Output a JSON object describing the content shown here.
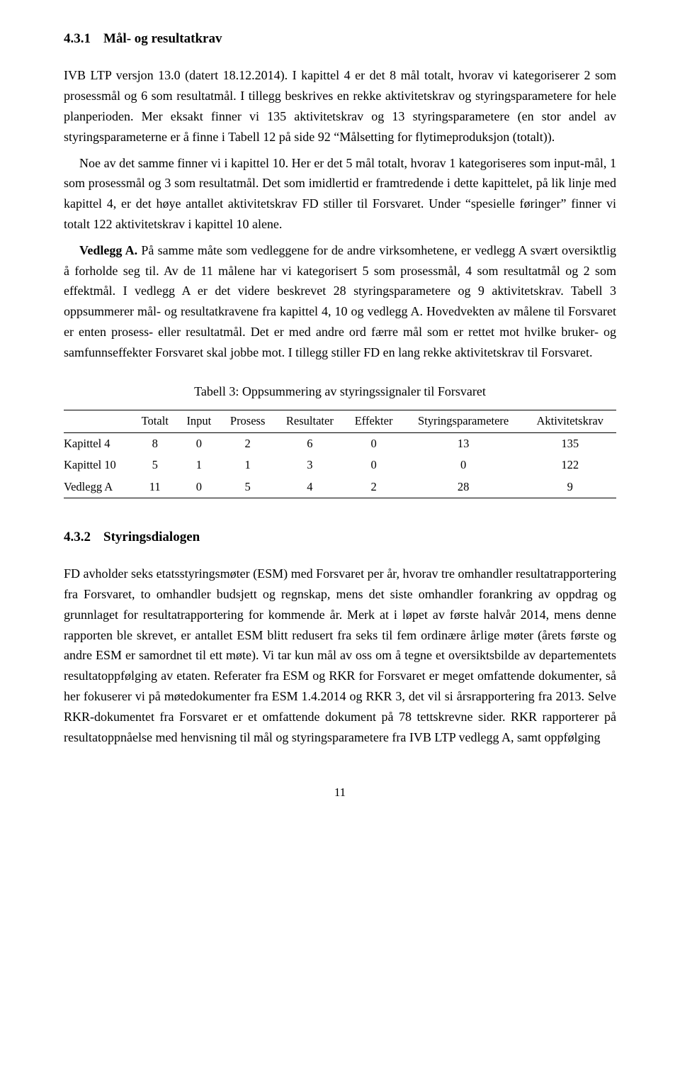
{
  "section1": {
    "number": "4.3.1",
    "title": "Mål- og resultatkrav"
  },
  "p1": "IVB LTP versjon 13.0 (datert 18.12.2014). I kapittel 4 er det 8 mål totalt, hvorav vi kategoriserer 2 som prosessmål og 6 som resultatmål. I tillegg beskrives en rekke aktivitetskrav og styringsparametere for hele planperioden. Mer eksakt finner vi 135 aktivitetskrav og 13 styringsparametere (en stor andel av styringsparameterne er å finne i Tabell 12 på side 92 “Målsetting for flytimeproduksjon (totalt)).",
  "p2": "Noe av det samme finner vi i kapittel 10. Her er det 5 mål totalt, hvorav 1 kategoriseres som input-mål, 1 som prosessmål og 3 som resultatmål. Det som imidlertid er framtredende i dette kapittelet, på lik linje med kapittel 4, er det høye antallet aktivitetskrav FD stiller til Forsvaret. Under “spesielle føringer” finner vi totalt 122 aktivitetskrav i kapittel 10 alene.",
  "p3_runin": "Vedlegg A.",
  "p3": " På samme måte som vedleggene for de andre virksomhetene, er vedlegg A svært oversiktlig å forholde seg til. Av de 11 målene har vi kategorisert 5 som prosessmål, 4 som resultatmål og 2 som effektmål. I vedlegg A er det videre beskrevet 28 styringsparametere og 9 aktivitetskrav. Tabell 3 oppsummerer mål- og resultatkravene fra kapittel 4, 10 og vedlegg A. Hovedvekten av målene til Forsvaret er enten prosess- eller resultatmål. Det er med andre ord færre mål som er rettet mot hvilke bruker- og samfunnseffekter Forsvaret skal jobbe mot. I tillegg stiller FD en lang rekke aktivitetskrav til Forsvaret.",
  "table": {
    "caption": "Tabell 3: Oppsummering av styringssignaler til Forsvaret",
    "columns": [
      "",
      "Totalt",
      "Input",
      "Prosess",
      "Resultater",
      "Effekter",
      "Styringsparametere",
      "Aktivitetskrav"
    ],
    "rows": [
      [
        "Kapittel 4",
        "8",
        "0",
        "2",
        "6",
        "0",
        "13",
        "135"
      ],
      [
        "Kapittel 10",
        "5",
        "1",
        "1",
        "3",
        "0",
        "0",
        "122"
      ],
      [
        "Vedlegg A",
        "11",
        "0",
        "5",
        "4",
        "2",
        "28",
        "9"
      ]
    ]
  },
  "section2": {
    "number": "4.3.2",
    "title": "Styringsdialogen"
  },
  "p4": "FD avholder seks etatsstyringsmøter (ESM) med Forsvaret per år, hvorav tre omhandler resultatrapportering fra Forsvaret, to omhandler budsjett og regnskap, mens det siste omhandler forankring av oppdrag og grunnlaget for resultatrapportering for kommende år. Merk at i løpet av første halvår 2014, mens denne rapporten ble skrevet, er antallet ESM blitt redusert fra seks til fem ordinære årlige møter (årets første og andre ESM er samordnet til ett møte). Vi tar kun mål av oss om å tegne et oversiktsbilde av departementets resultatoppfølging av etaten. Referater fra ESM og RKR for Forsvaret er meget omfattende dokumenter, så her fokuserer vi på møtedokumenter fra ESM 1.4.2014 og RKR 3, det vil si årsrapportering fra 2013. Selve RKR-dokumentet fra Forsvaret er et omfattende dokument på 78 tettskrevne sider. RKR rapporterer på resultatoppnåelse med henvisning til mål og styringsparametere fra IVB LTP vedlegg A, samt oppfølging",
  "pagenum": "11"
}
